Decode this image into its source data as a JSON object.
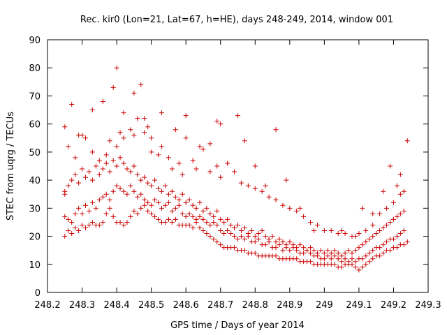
{
  "chart_data": {
    "type": "scatter",
    "title": "Rec. kir0 (Lon=21, Lat=67, h=HE), days 248-249, 2014, window 001",
    "xlabel": "GPS time / Days of year 2014",
    "ylabel": "STEC from uqrg / TECUs",
    "xlim": [
      248.2,
      249.3
    ],
    "ylim": [
      0,
      90
    ],
    "xticks": [
      248.2,
      248.3,
      248.4,
      248.5,
      248.6,
      248.7,
      248.8,
      248.9,
      249,
      249.1,
      249.2,
      249.3
    ],
    "xtick_labels": [
      "248.2",
      "248.3",
      "248.4",
      "248.5",
      "248.6",
      "248.7",
      "248.8",
      "248.9",
      "249",
      "249.1",
      "249.2",
      "249.3"
    ],
    "yticks": [
      0,
      10,
      20,
      30,
      40,
      50,
      60,
      70,
      80,
      90
    ],
    "ytick_labels": [
      "0",
      "10",
      "20",
      "30",
      "40",
      "50",
      "60",
      "70",
      "80",
      "90"
    ],
    "grid": false,
    "legend": "none",
    "marker": "+",
    "color": "#cc0000",
    "series": [
      {
        "x": [
          248.25,
          248.25,
          248.26,
          248.27,
          248.28,
          248.29,
          248.3,
          248.31,
          248.32,
          248.33,
          248.34,
          248.35,
          248.36,
          248.37,
          248.38,
          248.39,
          248.4,
          248.41,
          248.42,
          248.43,
          248.44,
          248.45,
          248.46,
          248.47,
          248.48,
          248.49,
          248.5,
          248.51,
          248.52,
          248.53,
          248.54,
          248.55,
          248.56,
          248.57,
          248.58,
          248.59,
          248.6,
          248.61,
          248.62,
          248.63,
          248.64,
          248.65,
          248.66,
          248.67,
          248.68,
          248.69,
          248.7,
          248.71,
          248.72,
          248.73,
          248.74,
          248.75,
          248.76,
          248.77,
          248.78,
          248.79,
          248.8,
          248.81,
          248.82,
          248.83,
          248.84,
          248.85,
          248.86,
          248.87,
          248.88,
          248.89,
          248.9,
          248.91,
          248.92,
          248.93,
          248.94,
          248.95,
          248.96,
          248.97,
          248.98,
          248.99,
          249.0,
          249.01,
          249.02,
          249.03,
          249.04,
          249.05,
          249.06,
          249.07,
          249.08,
          249.09,
          249.1,
          249.11,
          249.12,
          249.13,
          249.14,
          249.15,
          249.16,
          249.17,
          249.18,
          249.19,
          249.2,
          249.21,
          249.22,
          249.23,
          249.24
        ],
        "y": [
          20,
          36,
          22,
          21,
          23,
          22,
          24,
          23,
          24,
          25,
          24,
          24,
          25,
          28,
          30,
          27,
          25,
          25,
          24,
          25,
          27,
          29,
          28,
          30,
          31,
          29,
          28,
          27,
          26,
          25,
          25,
          26,
          25,
          26,
          24,
          24,
          24,
          24,
          23,
          25,
          23,
          22,
          21,
          20,
          19,
          18,
          17,
          16,
          16,
          16,
          16,
          15,
          15,
          15,
          14,
          14,
          14,
          13,
          13,
          13,
          13,
          13,
          13,
          12,
          12,
          12,
          12,
          12,
          12,
          11,
          11,
          11,
          11,
          10,
          10,
          10,
          10,
          10,
          10,
          10,
          9,
          9,
          10,
          10,
          10,
          9,
          8,
          9,
          10,
          11,
          12,
          13,
          13,
          14,
          15,
          15,
          16,
          16,
          17,
          17,
          18
        ]
      },
      {
        "x": [
          248.25,
          248.26,
          248.27,
          248.28,
          248.29,
          248.3,
          248.31,
          248.32,
          248.33,
          248.34,
          248.35,
          248.36,
          248.37,
          248.38,
          248.39,
          248.4,
          248.41,
          248.42,
          248.43,
          248.44,
          248.45,
          248.46,
          248.47,
          248.48,
          248.49,
          248.5,
          248.51,
          248.52,
          248.53,
          248.54,
          248.55,
          248.56,
          248.57,
          248.58,
          248.59,
          248.6,
          248.61,
          248.62,
          248.63,
          248.64,
          248.65,
          248.66,
          248.67,
          248.68,
          248.69,
          248.7,
          248.71,
          248.72,
          248.73,
          248.74,
          248.75,
          248.76,
          248.77,
          248.78,
          248.79,
          248.8,
          248.81,
          248.82,
          248.83,
          248.84,
          248.85,
          248.86,
          248.87,
          248.88,
          248.89,
          248.9,
          248.91,
          248.92,
          248.93,
          248.94,
          248.95,
          248.96,
          248.97,
          248.98,
          248.99,
          249.0,
          249.01,
          249.02,
          249.03,
          249.04,
          249.05,
          249.06,
          249.07,
          249.08,
          249.09,
          249.1,
          249.11,
          249.12,
          249.13,
          249.14,
          249.15,
          249.16,
          249.17,
          249.18,
          249.19,
          249.2,
          249.21,
          249.22,
          249.23
        ],
        "y": [
          27,
          26,
          25,
          28,
          30,
          28,
          31,
          29,
          32,
          30,
          33,
          34,
          35,
          33,
          36,
          38,
          37,
          36,
          35,
          38,
          36,
          34,
          35,
          33,
          32,
          31,
          33,
          32,
          30,
          31,
          32,
          29,
          30,
          31,
          28,
          27,
          28,
          27,
          26,
          27,
          26,
          25,
          24,
          25,
          24,
          22,
          21,
          22,
          21,
          20,
          19,
          20,
          19,
          20,
          18,
          18,
          19,
          17,
          17,
          18,
          16,
          16,
          17,
          15,
          16,
          15,
          16,
          15,
          14,
          14,
          15,
          14,
          13,
          13,
          12,
          12,
          13,
          12,
          13,
          12,
          11,
          12,
          11,
          12,
          11,
          12,
          12,
          13,
          14,
          15,
          16,
          16,
          17,
          18,
          19,
          19,
          20,
          21,
          22
        ]
      },
      {
        "x": [
          248.25,
          248.26,
          248.27,
          248.28,
          248.29,
          248.3,
          248.31,
          248.32,
          248.33,
          248.34,
          248.35,
          248.36,
          248.37,
          248.38,
          248.39,
          248.4,
          248.41,
          248.42,
          248.43,
          248.44,
          248.45,
          248.46,
          248.47,
          248.48,
          248.49,
          248.5,
          248.51,
          248.52,
          248.53,
          248.54,
          248.55,
          248.56,
          248.57,
          248.58,
          248.59,
          248.6,
          248.61,
          248.62,
          248.63,
          248.64,
          248.65,
          248.66,
          248.67,
          248.68,
          248.69,
          248.7,
          248.71,
          248.72,
          248.73,
          248.74,
          248.75,
          248.76,
          248.77,
          248.78,
          248.79,
          248.8,
          248.81,
          248.82,
          248.83,
          248.84,
          248.85,
          248.86,
          248.87,
          248.88,
          248.89,
          248.9,
          248.91,
          248.92,
          248.93,
          248.94,
          248.95,
          248.96,
          248.97,
          248.98,
          248.99,
          249.0,
          249.01,
          249.02,
          249.03,
          249.04,
          249.05,
          249.06,
          249.07,
          249.08,
          249.09,
          249.1,
          249.11,
          249.12,
          249.13,
          249.14,
          249.15,
          249.16,
          249.17,
          249.18,
          249.19,
          249.2,
          249.21,
          249.22,
          249.23
        ],
        "y": [
          35,
          38,
          40,
          42,
          39,
          44,
          41,
          43,
          40,
          45,
          42,
          44,
          46,
          43,
          47,
          45,
          48,
          46,
          44,
          43,
          45,
          42,
          40,
          41,
          39,
          38,
          40,
          37,
          36,
          38,
          35,
          36,
          34,
          33,
          35,
          32,
          33,
          31,
          30,
          32,
          29,
          30,
          28,
          27,
          29,
          26,
          25,
          26,
          24,
          23,
          24,
          22,
          23,
          21,
          22,
          20,
          21,
          22,
          20,
          19,
          20,
          18,
          19,
          18,
          17,
          18,
          17,
          16,
          17,
          16,
          15,
          16,
          15,
          14,
          15,
          14,
          15,
          14,
          15,
          14,
          13,
          14,
          15,
          14,
          15,
          16,
          17,
          18,
          19,
          20,
          21,
          22,
          23,
          24,
          25,
          26,
          27,
          28,
          29
        ]
      },
      {
        "x": [
          248.25,
          248.26,
          248.28,
          248.29,
          248.31,
          248.33,
          248.35,
          248.37,
          248.38,
          248.4,
          248.41,
          248.42,
          248.44,
          248.45,
          248.46,
          248.48,
          248.49,
          248.5,
          248.52,
          248.53,
          248.55,
          248.56,
          248.58,
          248.59,
          248.6,
          248.62,
          248.63,
          248.65,
          248.67,
          248.69,
          248.7,
          248.72,
          248.74,
          248.76,
          248.78,
          248.8,
          248.82,
          248.84,
          248.86,
          248.88,
          248.9,
          248.92,
          248.94,
          248.96,
          248.98,
          249.0,
          249.02,
          249.04,
          249.06,
          249.08,
          249.1,
          249.12,
          249.14,
          249.16,
          249.18,
          249.2,
          249.22
        ],
        "y": [
          59,
          52,
          48,
          56,
          55,
          50,
          47,
          49,
          54,
          52,
          57,
          55,
          58,
          56,
          62,
          57,
          59,
          50,
          49,
          52,
          48,
          44,
          46,
          42,
          55,
          47,
          44,
          51,
          43,
          45,
          41,
          46,
          43,
          39,
          38,
          37,
          36,
          34,
          33,
          31,
          30,
          29,
          27,
          25,
          24,
          22,
          22,
          21,
          21,
          20,
          21,
          22,
          24,
          28,
          30,
          32,
          35
        ]
      },
      {
        "x": [
          248.27,
          248.3,
          248.33,
          248.36,
          248.39,
          248.4,
          248.42,
          248.45,
          248.47,
          248.48,
          248.5,
          248.53,
          248.57,
          248.6,
          248.64,
          248.67,
          248.69,
          248.7,
          248.72,
          248.75,
          248.77,
          248.8,
          248.83,
          248.86,
          248.89,
          248.93,
          248.97,
          249.05,
          249.09,
          249.11,
          249.14,
          249.17,
          249.19,
          249.21,
          249.22,
          249.23,
          249.24
        ],
        "y": [
          67,
          56,
          65,
          68,
          73,
          80,
          64,
          71,
          74,
          62,
          55,
          64,
          58,
          63,
          52,
          53,
          61,
          60,
          46,
          63,
          54,
          45,
          38,
          58,
          40,
          30,
          22,
          22,
          20,
          30,
          28,
          36,
          45,
          38,
          42,
          36,
          54
        ]
      }
    ]
  }
}
